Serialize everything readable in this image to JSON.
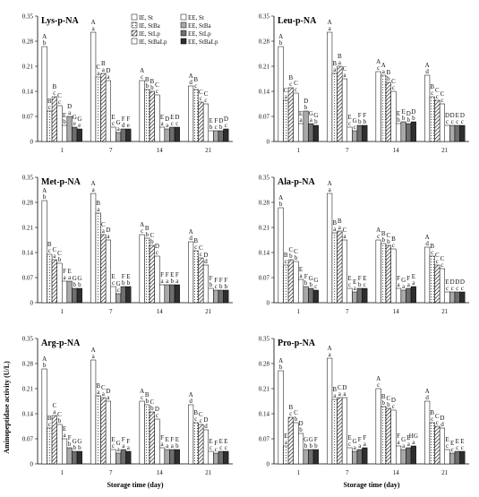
{
  "figure": {
    "ylabel": "Aminopeptidase activity (U/L)",
    "xlabel": "Storage time (day)"
  },
  "legend": {
    "placement": "top-right of first panel",
    "entries": [
      "IE, St",
      "IE, StBa",
      "IE, StLp",
      "IE, StBaLp",
      "EE, St",
      "EE, StBa",
      "EE, StLp",
      "EE, StBaLp"
    ]
  },
  "chart_data": [
    {
      "type": "bar",
      "title": "Lys-p-NA",
      "categories": [
        "1",
        "7",
        "14",
        "21"
      ],
      "ylim": [
        0,
        0.35
      ],
      "yticks": [
        "0",
        "0.07",
        "0.14",
        "0.21",
        "0.28",
        "0.35"
      ],
      "series": [
        {
          "name": "IE, St",
          "values": [
            0.265,
            0.305,
            0.17,
            0.155
          ]
        },
        {
          "name": "IE, StBa",
          "values": [
            0.085,
            0.18,
            0.145,
            0.145
          ]
        },
        {
          "name": "IE, StLp",
          "values": [
            0.125,
            0.19,
            0.14,
            0.11
          ]
        },
        {
          "name": "IE, StBaLp",
          "values": [
            0.1,
            0.17,
            0.13,
            0.105
          ]
        },
        {
          "name": "EE, St",
          "values": [
            0.045,
            0.04,
            0.04,
            0.03
          ]
        },
        {
          "name": "EE, StBa",
          "values": [
            0.07,
            0.025,
            0.035,
            0.03
          ]
        },
        {
          "name": "EE, StLp",
          "values": [
            0.04,
            0.035,
            0.04,
            0.03
          ]
        },
        {
          "name": "EE, StBaLp",
          "values": [
            0.035,
            0.035,
            0.04,
            0.035
          ]
        }
      ],
      "letters": [
        [
          "Ab",
          "Bc",
          "Bc",
          "Cc",
          "Eb",
          "Da",
          "Ge",
          "Ge"
        ],
        [
          "Aa",
          "Ca",
          "Ba",
          "Da",
          "Ec",
          "Ga",
          "Fd",
          "Fe"
        ],
        [
          "Ac",
          "Bb",
          "Bb",
          "Cc",
          "Ea",
          "Da",
          "Ec",
          "Dc"
        ],
        [
          "Ad",
          "Bc",
          "Cc",
          "Cc",
          "Eb",
          "Fc",
          "Db",
          "Dc"
        ]
      ]
    },
    {
      "type": "bar",
      "title": "Leu-p-NA",
      "categories": [
        "1",
        "7",
        "14",
        "21"
      ],
      "ylim": [
        0,
        0.35
      ],
      "yticks": [
        "0",
        "0.07",
        "0.14",
        "0.21",
        "0.28",
        "0.35"
      ],
      "series": [
        {
          "name": "IE, St",
          "values": [
            0.265,
            0.305,
            0.195,
            0.185
          ]
        },
        {
          "name": "IE, StBa",
          "values": [
            0.115,
            0.19,
            0.185,
            0.125
          ]
        },
        {
          "name": "IE, StLp",
          "values": [
            0.15,
            0.21,
            0.165,
            0.115
          ]
        },
        {
          "name": "IE, StBaLp",
          "values": [
            0.135,
            0.175,
            0.14,
            0.105
          ]
        },
        {
          "name": "EE, St",
          "values": [
            0.05,
            0.04,
            0.05,
            0.045
          ]
        },
        {
          "name": "EE, StBa",
          "values": [
            0.085,
            0.03,
            0.055,
            0.045
          ]
        },
        {
          "name": "EE, StLp",
          "values": [
            0.05,
            0.045,
            0.05,
            0.045
          ]
        },
        {
          "name": "EE, StBaLp",
          "values": [
            0.045,
            0.045,
            0.055,
            0.045
          ]
        }
      ],
      "letters": [
        [
          "Ab",
          "Ca",
          "Bc",
          "Cc",
          "Ea",
          "Db",
          "Ga",
          "Gb"
        ],
        [
          "Aa",
          "Ba",
          "Ba",
          "Ca",
          "Ec",
          "Gc",
          "Fb",
          "Fb"
        ],
        [
          "Ac",
          "Aa",
          "Bb",
          "Cc",
          "Eb",
          "Eb",
          "Db",
          "Db"
        ],
        [
          "Ad",
          "Bc",
          "Cc",
          "Cc",
          "Dc",
          "Dc",
          "Ec",
          "Dc"
        ]
      ]
    },
    {
      "type": "bar",
      "title": "Met-p-NA",
      "categories": [
        "1",
        "7",
        "14",
        "21"
      ],
      "ylim": [
        0,
        0.35
      ],
      "yticks": [
        "0",
        "0.07",
        "0.14",
        "0.21",
        "0.28",
        "0.35"
      ],
      "series": [
        {
          "name": "IE, St",
          "values": [
            0.285,
            0.305,
            0.19,
            0.17
          ]
        },
        {
          "name": "IE, StBa",
          "values": [
            0.135,
            0.25,
            0.18,
            0.145
          ]
        },
        {
          "name": "IE, StLp",
          "values": [
            0.12,
            0.19,
            0.16,
            0.125
          ]
        },
        {
          "name": "IE, StBaLp",
          "values": [
            0.11,
            0.175,
            0.13,
            0.105
          ]
        },
        {
          "name": "EE, St",
          "values": [
            0.06,
            0.045,
            0.05,
            0.04
          ]
        },
        {
          "name": "EE, StBa",
          "values": [
            0.06,
            0.025,
            0.05,
            0.035
          ]
        },
        {
          "name": "EE, StLp",
          "values": [
            0.04,
            0.045,
            0.05,
            0.035
          ]
        },
        {
          "name": "EE, StBaLp",
          "values": [
            0.04,
            0.045,
            0.05,
            0.035
          ]
        }
      ],
      "letters": [
        [
          "Ab",
          "Bc",
          "Ca",
          "Cb",
          "Fa",
          "Ea",
          "Gb",
          "Gb"
        ],
        [
          "Aa",
          "Ba",
          "Ca",
          "Da",
          "Ec",
          "Gc",
          "Fb",
          "Eb"
        ],
        [
          "Ac",
          "Bb",
          "Cb",
          "Dc",
          "Fa",
          "Fa",
          "Eb",
          "Fa"
        ],
        [
          "Ad",
          "Bc",
          "Cc",
          "Dd",
          "Fb",
          "Fc",
          "Fb",
          "Fb"
        ]
      ]
    },
    {
      "type": "bar",
      "title": "Ala-p-NA",
      "categories": [
        "1",
        "7",
        "14",
        "21"
      ],
      "ylim": [
        0,
        0.35
      ],
      "yticks": [
        "0",
        "0.07",
        "0.14",
        "0.21",
        "0.28",
        "0.35"
      ],
      "series": [
        {
          "name": "IE, St",
          "values": [
            0.265,
            0.305,
            0.175,
            0.155
          ]
        },
        {
          "name": "IE, StBa",
          "values": [
            0.105,
            0.195,
            0.165,
            0.13
          ]
        },
        {
          "name": "IE, StLp",
          "values": [
            0.12,
            0.2,
            0.16,
            0.105
          ]
        },
        {
          "name": "IE, StBaLp",
          "values": [
            0.115,
            0.175,
            0.15,
            0.095
          ]
        },
        {
          "name": "EE, St",
          "values": [
            0.065,
            0.04,
            0.04,
            0.03
          ]
        },
        {
          "name": "EE, StBa",
          "values": [
            0.045,
            0.03,
            0.035,
            0.03
          ]
        },
        {
          "name": "EE, StLp",
          "values": [
            0.04,
            0.04,
            0.04,
            0.03
          ]
        },
        {
          "name": "EE, StBaLp",
          "values": [
            0.035,
            0.04,
            0.045,
            0.03
          ]
        }
      ],
      "letters": [
        [
          "Ab",
          "Bc",
          "Cb",
          "Cb",
          "Ea",
          "Fb",
          "Gb",
          "Gc"
        ],
        [
          "Aa",
          "Ba",
          "Ba",
          "Ca",
          "Ec",
          "Ea",
          "Fb",
          "Ec"
        ],
        [
          "Ac",
          "Bb",
          "Cb",
          "Bc",
          "Fa",
          "Ga",
          "Fa",
          "Ea"
        ],
        [
          "Ad",
          "Bc",
          "Cc",
          "Cc",
          "Ec",
          "Dc",
          "Dc",
          "Dc"
        ]
      ]
    },
    {
      "type": "bar",
      "title": "Arg-p-NA",
      "categories": [
        "1",
        "7",
        "14",
        "21"
      ],
      "ylim": [
        0,
        0.35
      ],
      "yticks": [
        "0",
        "0.07",
        "0.14",
        "0.21",
        "0.28",
        "0.35"
      ],
      "series": [
        {
          "name": "IE, St",
          "values": [
            0.265,
            0.29,
            0.175,
            0.165
          ]
        },
        {
          "name": "IE, StBa",
          "values": [
            0.1,
            0.19,
            0.165,
            0.115
          ]
        },
        {
          "name": "IE, StLp",
          "values": [
            0.135,
            0.185,
            0.145,
            0.11
          ]
        },
        {
          "name": "IE, StBaLp",
          "values": [
            0.11,
            0.175,
            0.125,
            0.095
          ]
        },
        {
          "name": "EE, St",
          "values": [
            0.07,
            0.04,
            0.045,
            0.035
          ]
        },
        {
          "name": "EE, StBa",
          "values": [
            0.045,
            0.03,
            0.04,
            0.03
          ]
        },
        {
          "name": "EE, StLp",
          "values": [
            0.035,
            0.04,
            0.04,
            0.035
          ]
        },
        {
          "name": "EE, StBaLp",
          "values": [
            0.035,
            0.035,
            0.04,
            0.035
          ]
        }
      ],
      "letters": [
        [
          "Ab",
          "Bc",
          "Ca",
          "Cb",
          "Ea",
          "Fb",
          "Gb",
          "Gb"
        ],
        [
          "Aa",
          "Ba",
          "Ca",
          "Da",
          "Ec",
          "Ga",
          "Fa",
          "Fa"
        ],
        [
          "Ac",
          "Bb",
          "Cb",
          "Dc",
          "Fa",
          "Ea",
          "Fa",
          "Eb"
        ],
        [
          "Ad",
          "Bc",
          "Cc",
          "Dd",
          "Ec",
          "Fc",
          "Ec",
          "Ec"
        ]
      ]
    },
    {
      "type": "bar",
      "title": "Pro-p-NA",
      "categories": [
        "1",
        "7",
        "14",
        "21"
      ],
      "ylim": [
        0,
        0.35
      ],
      "yticks": [
        "0",
        "0.07",
        "0.14",
        "0.21",
        "0.28",
        "0.35"
      ],
      "series": [
        {
          "name": "IE, St",
          "values": [
            0.26,
            0.295,
            0.21,
            0.175
          ]
        },
        {
          "name": "IE, StBa",
          "values": [
            0.05,
            0.18,
            0.16,
            0.115
          ]
        },
        {
          "name": "IE, StLp",
          "values": [
            0.13,
            0.185,
            0.155,
            0.105
          ]
        },
        {
          "name": "IE, StBaLp",
          "values": [
            0.115,
            0.185,
            0.15,
            0.1
          ]
        },
        {
          "name": "EE, St",
          "values": [
            0.085,
            0.045,
            0.05,
            0.04
          ]
        },
        {
          "name": "EE, StBa",
          "values": [
            0.04,
            0.035,
            0.04,
            0.03
          ]
        },
        {
          "name": "EE, StLp",
          "values": [
            0.04,
            0.04,
            0.045,
            0.035
          ]
        },
        {
          "name": "EE, StBaLp",
          "values": [
            0.04,
            0.045,
            0.05,
            0.035
          ]
        }
      ],
      "letters": [
        [
          "Ab",
          "Ea",
          "Bc",
          "Cb",
          "Db",
          "Gb",
          "Gb",
          "Fb"
        ],
        [
          "Aa",
          "Ba",
          "Ca",
          "Da",
          "Ec",
          "Ga",
          "Fa",
          "Fa"
        ],
        [
          "Ac",
          "Bb",
          "Cb",
          "Dc",
          "Fa",
          "Ga",
          "Ea",
          "HGa"
        ],
        [
          "Ad",
          "Bc",
          "Cc",
          "Dd",
          "Ec",
          "Ec",
          "Ec",
          "Ec"
        ]
      ]
    }
  ]
}
